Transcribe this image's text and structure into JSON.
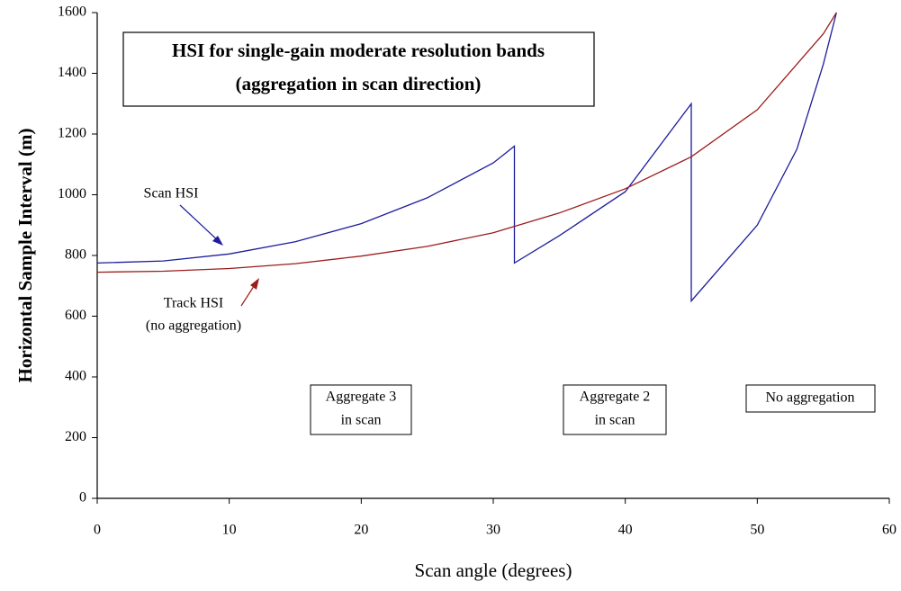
{
  "chart_data": {
    "type": "line",
    "title": [
      "HSI for single-gain moderate resolution bands",
      "(aggregation in scan direction)"
    ],
    "xlabel": "Scan angle (degrees)",
    "ylabel": "Horizontal Sample Interval (m)",
    "xlim": [
      0,
      60
    ],
    "xticks": [
      0,
      10,
      20,
      30,
      40,
      50,
      60
    ],
    "ylim": [
      0,
      1600
    ],
    "yticks": [
      0,
      200,
      400,
      600,
      800,
      1000,
      1200,
      1400,
      1600
    ],
    "grid": false,
    "series": [
      {
        "name": "Scan HSI",
        "color": "#1c1c9c",
        "x": [
          0,
          5,
          10,
          15,
          20,
          25,
          30,
          31.6,
          31.6,
          35,
          40,
          45,
          45,
          50,
          53,
          55,
          56
        ],
        "values": [
          775,
          782,
          805,
          845,
          905,
          990,
          1105,
          1160,
          775,
          865,
          1010,
          1300,
          650,
          900,
          1150,
          1430,
          1600
        ]
      },
      {
        "name": "Track HSI",
        "color": "#9c1c1c",
        "x": [
          0,
          5,
          10,
          15,
          20,
          25,
          30,
          35,
          40,
          45,
          50,
          55,
          56
        ],
        "values": [
          745,
          748,
          757,
          773,
          798,
          830,
          875,
          940,
          1020,
          1125,
          1280,
          1530,
          1600
        ]
      }
    ],
    "annotations": [
      [
        "(no aggregation)"
      ],
      [
        "Aggregate 3",
        "in scan"
      ],
      [
        "Aggregate 2",
        "in scan"
      ],
      [
        "No aggregation"
      ]
    ]
  }
}
